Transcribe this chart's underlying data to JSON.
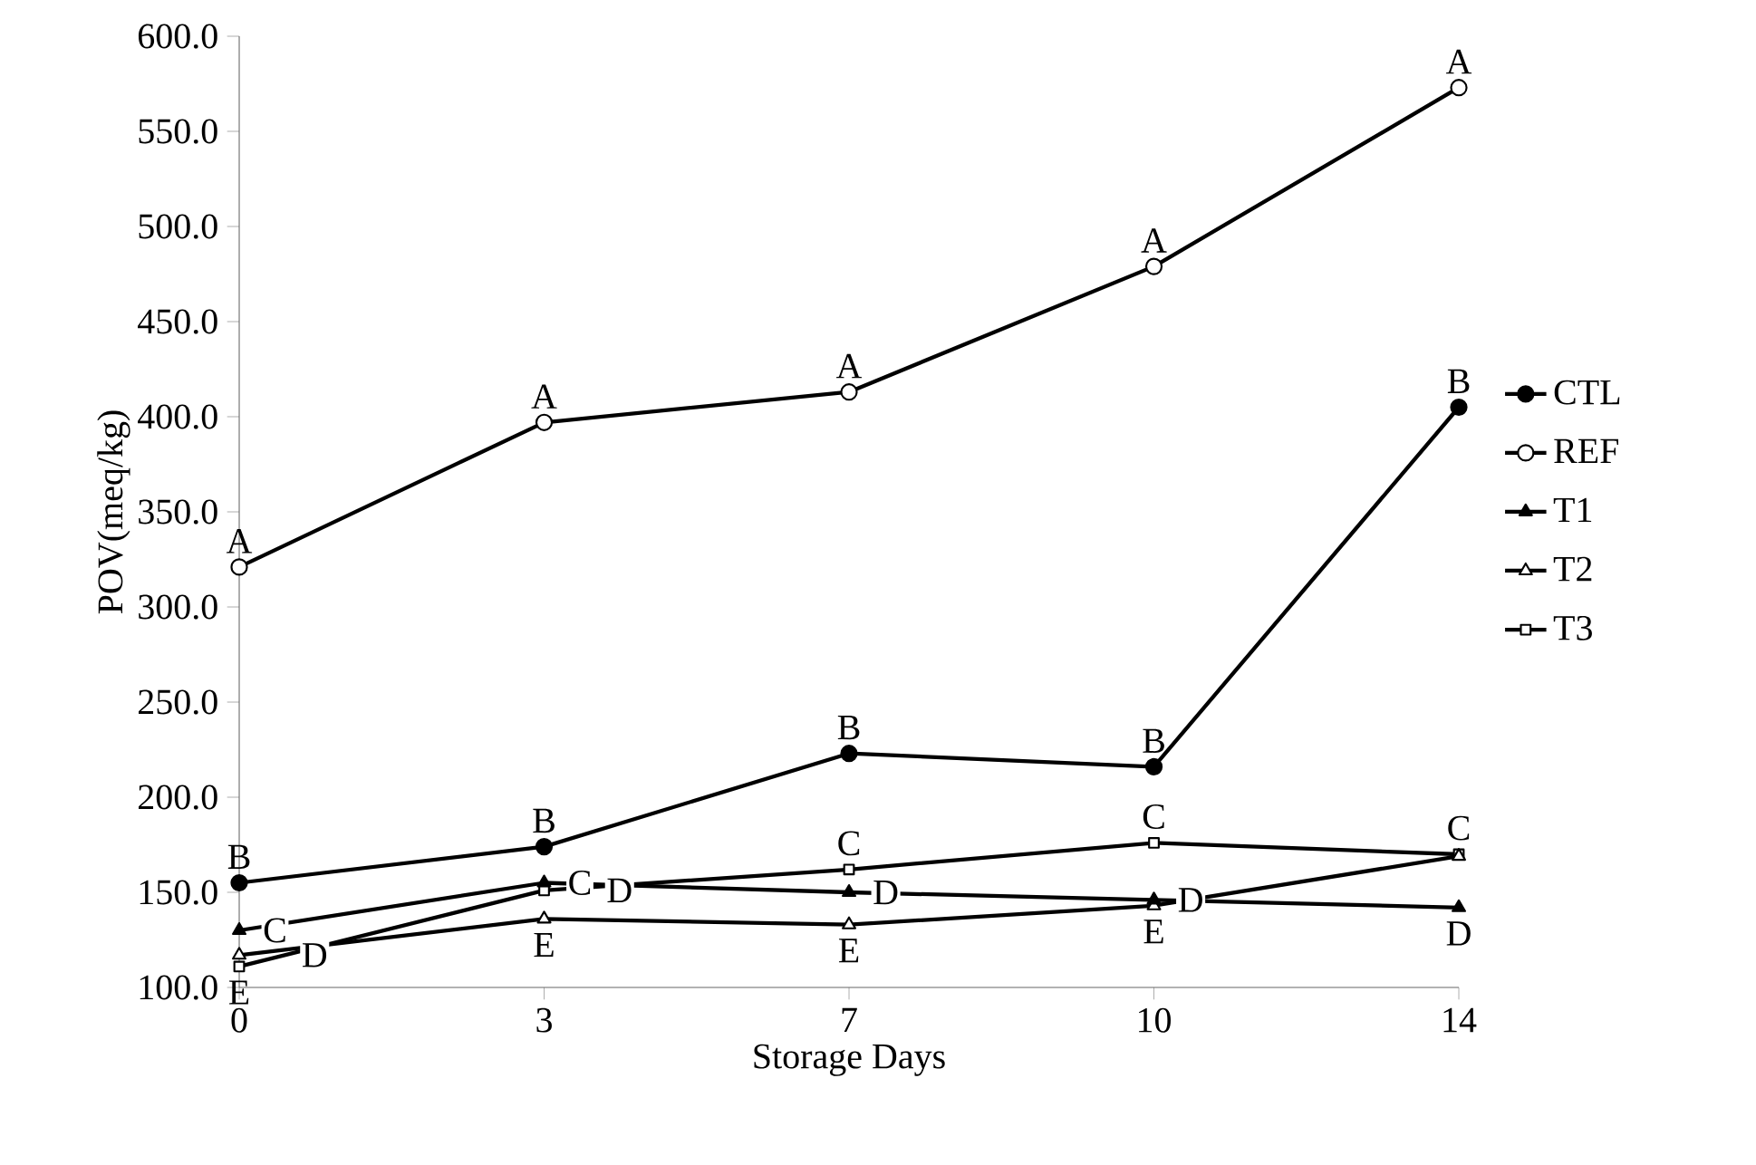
{
  "chart_data": {
    "type": "line",
    "xlabel": "Storage Days",
    "ylabel": "POV(meq/kg)",
    "categories": [
      "0",
      "3",
      "7",
      "10",
      "14"
    ],
    "series": [
      {
        "name": "CTL",
        "color": "#000000",
        "marker": "circle",
        "values": [
          155,
          174,
          223,
          216,
          405
        ]
      },
      {
        "name": "REF",
        "color": "#000000",
        "marker": "circle-open",
        "values": [
          321,
          397,
          413,
          479,
          573
        ]
      },
      {
        "name": "T1",
        "color": "#000000",
        "marker": "triangle",
        "values": [
          130,
          155,
          150,
          146,
          142
        ]
      },
      {
        "name": "T2",
        "color": "#000000",
        "marker": "triangle-open",
        "values": [
          117,
          136,
          133,
          143,
          169
        ]
      },
      {
        "name": "T3",
        "color": "#000000",
        "marker": "square-open",
        "values": [
          111,
          151,
          162,
          176,
          170
        ]
      }
    ],
    "ylim": [
      100,
      600
    ],
    "yticks": [
      {
        "value": 100,
        "label": "100.0"
      },
      {
        "value": 150,
        "label": "150.0"
      },
      {
        "value": 200,
        "label": "200.0"
      },
      {
        "value": 250,
        "label": "250.0"
      },
      {
        "value": 300,
        "label": "300.0"
      },
      {
        "value": 350,
        "label": "350.0"
      },
      {
        "value": 400,
        "label": "400.0"
      },
      {
        "value": 450,
        "label": "450.0"
      },
      {
        "value": 500,
        "label": "500.0"
      },
      {
        "value": 550,
        "label": "550.0"
      },
      {
        "value": 600,
        "label": "600.0"
      }
    ],
    "legend": "right",
    "grid": false,
    "line_style": "solid",
    "annotations": [
      {
        "text": "A",
        "x": "0",
        "y": 321
      },
      {
        "text": "A",
        "x": "3",
        "y": 397
      },
      {
        "text": "A",
        "x": "7",
        "y": 413
      },
      {
        "text": "A",
        "x": "10",
        "y": 479
      },
      {
        "text": "A",
        "x": "14",
        "y": 573
      },
      {
        "text": "B",
        "x": "0",
        "y": 155
      },
      {
        "text": "B",
        "x": "3",
        "y": 174
      },
      {
        "text": "B",
        "x": "7",
        "y": 223
      },
      {
        "text": "B",
        "x": "10",
        "y": 216
      },
      {
        "text": "B",
        "x": "14",
        "y": 405
      },
      {
        "text": "C",
        "x": "0",
        "y": 130
      },
      {
        "text": "C",
        "x": "3",
        "y": 155
      },
      {
        "text": "C",
        "x": "7",
        "y": 162
      },
      {
        "text": "C",
        "x": "10",
        "y": 176
      },
      {
        "text": "C",
        "x": "14",
        "y": 170
      },
      {
        "text": "D",
        "x": "0",
        "y": 117
      },
      {
        "text": "D",
        "x": "3",
        "y": 151
      },
      {
        "text": "D",
        "x": "7",
        "y": 150
      },
      {
        "text": "D",
        "x": "10",
        "y": 146
      },
      {
        "text": "D",
        "x": "14",
        "y": 142
      },
      {
        "text": "E",
        "x": "0",
        "y": 111
      },
      {
        "text": "E",
        "x": "3",
        "y": 136
      },
      {
        "text": "E",
        "x": "7",
        "y": 133
      },
      {
        "text": "E",
        "x": "10",
        "y": 143
      }
    ]
  }
}
